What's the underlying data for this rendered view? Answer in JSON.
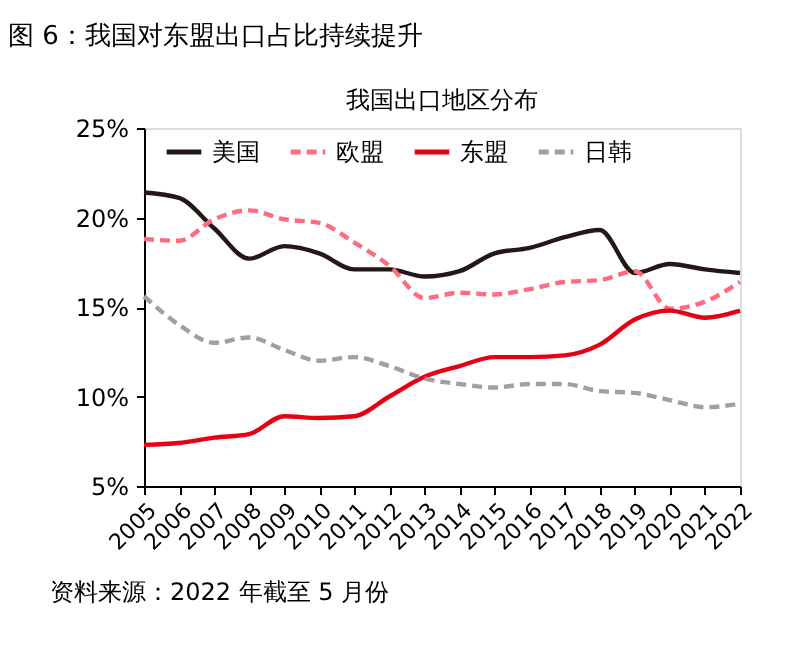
{
  "chart_data": {
    "type": "line",
    "title": "图 6：我国对东盟出口占比持续提升",
    "subtitle": "我国出口地区分布",
    "categories": [
      "2005",
      "2006",
      "2007",
      "2008",
      "2009",
      "2010",
      "2011",
      "2012",
      "2013",
      "2014",
      "2015",
      "2016",
      "2017",
      "2018",
      "2019",
      "2020",
      "2021",
      "2022"
    ],
    "series": [
      {
        "name": "美国",
        "color": "#231815",
        "line_style": "solid",
        "values": [
          21.4,
          21.1,
          19.4,
          17.7,
          18.4,
          18.0,
          17.1,
          17.1,
          16.7,
          17.0,
          18.0,
          18.3,
          18.9,
          19.3,
          16.9,
          17.4,
          17.1,
          16.9
        ]
      },
      {
        "name": "欧盟",
        "color": "#ff6b7f",
        "line_style": "dashed",
        "values": [
          18.8,
          18.7,
          19.9,
          20.4,
          19.9,
          19.7,
          18.6,
          17.3,
          15.5,
          15.8,
          15.7,
          16.0,
          16.4,
          16.5,
          17.0,
          14.9,
          15.3,
          16.4
        ]
      },
      {
        "name": "东盟",
        "color": "#e60012",
        "line_style": "solid",
        "values": [
          7.3,
          7.4,
          7.7,
          7.9,
          8.9,
          8.8,
          8.9,
          10.0,
          11.1,
          11.7,
          12.2,
          12.2,
          12.3,
          12.9,
          14.3,
          14.8,
          14.4,
          14.8
        ]
      },
      {
        "name": "日韩",
        "color": "#a0a0a0",
        "line_style": "dashed",
        "values": [
          15.6,
          14.0,
          13.0,
          13.3,
          12.6,
          12.0,
          12.2,
          11.7,
          11.0,
          10.7,
          10.5,
          10.7,
          10.7,
          10.3,
          10.2,
          9.8,
          9.4,
          9.6
        ]
      }
    ],
    "ylim": [
      5,
      25
    ],
    "yticks": [
      {
        "value": 5,
        "label": "5%"
      },
      {
        "value": 10,
        "label": "10%"
      },
      {
        "value": 15,
        "label": "15%"
      },
      {
        "value": 20,
        "label": "20%"
      },
      {
        "value": 25,
        "label": "25%"
      }
    ],
    "grid": false,
    "legend": "top",
    "marker": "none",
    "annotations": [
      "资料来源：2022 年截至 5 月份"
    ]
  }
}
